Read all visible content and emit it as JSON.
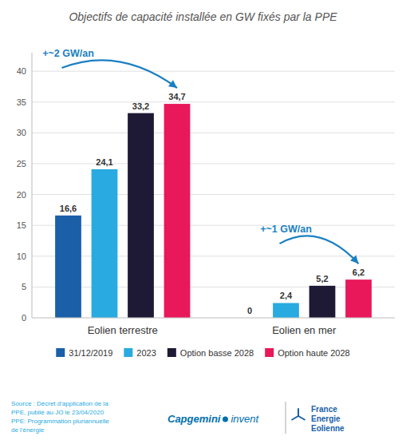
{
  "chart_data": {
    "type": "bar",
    "title": "Objectifs de capacité installée en GW fixés par la PPE",
    "categories": [
      "Eolien terrestre",
      "Eolien en mer"
    ],
    "series": [
      {
        "name": "31/12/2019",
        "color": "#1a5fa8",
        "values": [
          16.6,
          0
        ],
        "value_labels": [
          "16,6",
          "0"
        ]
      },
      {
        "name": "2023",
        "color": "#29aae1",
        "values": [
          24.1,
          2.4
        ],
        "value_labels": [
          "24,1",
          "2,4"
        ]
      },
      {
        "name": "Option basse 2028",
        "color": "#1e1a35",
        "values": [
          33.2,
          5.2
        ],
        "value_labels": [
          "33,2",
          "5,2"
        ]
      },
      {
        "name": "Option haute 2028",
        "color": "#e8185a",
        "values": [
          34.7,
          6.2
        ],
        "value_labels": [
          "34,7",
          "6,2"
        ]
      }
    ],
    "ylim": [
      0,
      43
    ],
    "yticks": [
      0,
      5,
      10,
      15,
      20,
      25,
      30,
      35,
      40
    ],
    "grid": true,
    "legend": "bottom",
    "data_labels": true,
    "annotations": [
      "+~2 GW/an",
      "+~1 GW/an"
    ],
    "source": "Source : Décret d'application de la\nPPE, publié au JO le 23/04/2020\nPPE: Programmation pluriannuelle\nde l'énergie",
    "footer": [
      "Capgemini",
      "invent",
      "France",
      "Energie",
      "Eolienne"
    ]
  }
}
